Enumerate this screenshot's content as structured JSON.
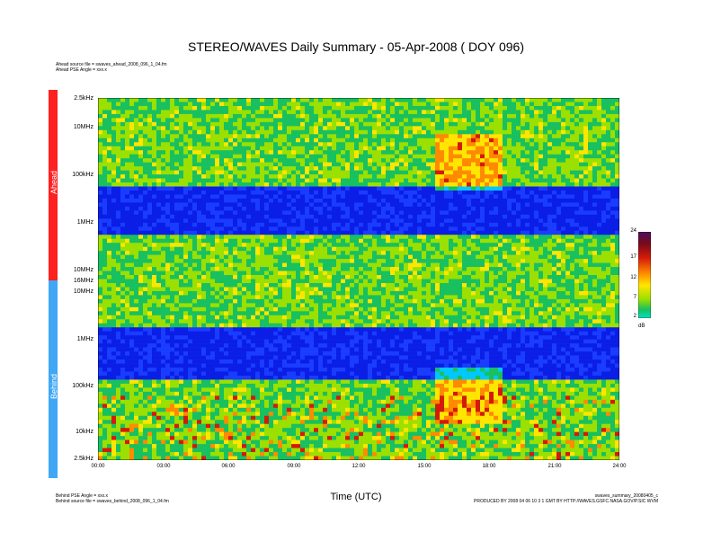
{
  "title": "STEREO/WAVES Daily Summary - 05-Apr-2008 ( DOY 096)",
  "top_meta": [
    "Ahead source file = swaves_ahead_2008_096_1_04.fm",
    "Ahead PSE Angle = xxx.x"
  ],
  "bottom_left_meta": [
    "Behind PSE Angle = xxx.x",
    "Behind source file = swaves_behind_2008_096_1_04.fm"
  ],
  "bottom_right_meta": [
    "swaves_summary_20080405_c",
    "PRODUCED BY 2008 04 06 10 3 1 GMT BY HTTP://WAVES.GSFC.NASA.GOV/P.SIC WVM"
  ],
  "colors": {
    "ahead_bar": "#ff2020",
    "behind_bar": "#3fa7f5",
    "background": "#ffffff"
  },
  "chart_data": {
    "type": "heatmap",
    "title": "STEREO/WAVES Daily Summary - 05-Apr-2008 ( DOY 096)",
    "xlabel": "Time (UTC)",
    "ylabel_ahead": "Ahead",
    "ylabel_behind": "Behind",
    "x_ticks": [
      "00:00",
      "03:00",
      "06:00",
      "09:00",
      "12:00",
      "15:00",
      "18:00",
      "21:00",
      "24:00"
    ],
    "x_range_hours": [
      0,
      24
    ],
    "y_ticks_ahead": [
      "2.5kHz",
      "10MHz",
      "100kHz",
      "1MHz",
      "10MHz",
      "16MHz"
    ],
    "y_ticks_behind": [
      "10MHz",
      "1MHz",
      "100kHz",
      "10kHz",
      "2.5kHz"
    ],
    "colorbar": {
      "ticks": [
        "24",
        "17",
        "12",
        "7",
        "2"
      ],
      "range": [
        2,
        24
      ],
      "unit": "dB",
      "colors": [
        "#4b0f5e",
        "#7a0a1a",
        "#d41a0a",
        "#ff8a00",
        "#ffe600",
        "#9be000",
        "#18c060",
        "#00e0c0"
      ]
    },
    "features": [
      {
        "panel": "ahead",
        "description_time_hours": [
          15.5,
          18.5
        ],
        "type": "radio burst"
      },
      {
        "panel": "behind",
        "description_time_hours": [
          15.5,
          18.5
        ],
        "type": "radio burst"
      }
    ]
  }
}
